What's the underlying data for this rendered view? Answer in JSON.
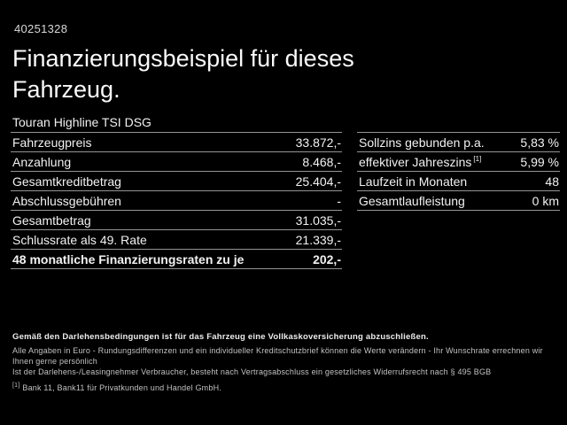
{
  "header": {
    "vehicle_id": "40251328",
    "title": "Finanzierungsbeispiel für dieses Fahrzeug.",
    "vehicle_model": "Touran Highline TSI DSG"
  },
  "left_table": {
    "rows": [
      {
        "label": "Fahrzeugpreis",
        "value": "33.872,-"
      },
      {
        "label": "Anzahlung",
        "value": "8.468,-"
      },
      {
        "label": "Gesamtkreditbetrag",
        "value": "25.404,-"
      },
      {
        "label": "Abschlussgebühren",
        "value": "-"
      },
      {
        "label": "Gesamtbetrag",
        "value": "31.035,-"
      },
      {
        "label": "Schlussrate als 49. Rate",
        "value": "21.339,-"
      },
      {
        "label": "48 monatliche Finanzierungsraten zu je",
        "value": "202,-"
      }
    ]
  },
  "right_table": {
    "rows": [
      {
        "label": "Sollzins gebunden p.a.",
        "value": "5,83 %"
      },
      {
        "label": "effektiver Jahreszins",
        "sup": "[1]",
        "value": "5,99 %"
      },
      {
        "label": "Laufzeit in Monaten",
        "value": "48"
      },
      {
        "label": "Gesamtlaufleistung",
        "value": "0 km"
      }
    ]
  },
  "legal": {
    "line1": "Gemäß den Darlehensbedingungen ist für das Fahrzeug eine Vollkaskoversicherung abzuschließen.",
    "line2": "Alle Angaben in Euro - Rundungsdifferenzen und ein individueller Kreditschutzbrief können die Werte verändern - Ihr Wunschrate errechnen wir Ihnen gerne persönlich",
    "line3": "Ist der Darlehens-/Leasingnehmer Verbraucher, besteht nach Vertragsabschluss ein gesetzliches Widerrufsrecht nach § 495 BGB",
    "footnote_marker": "[1]",
    "footnote_text": "Bank 11, Bank11 für Privatkunden und Handel GmbH."
  },
  "colors": {
    "background": "#000000",
    "text": "#f2f2f2",
    "divider": "#949494",
    "fine_print": "#c2c2c2"
  }
}
